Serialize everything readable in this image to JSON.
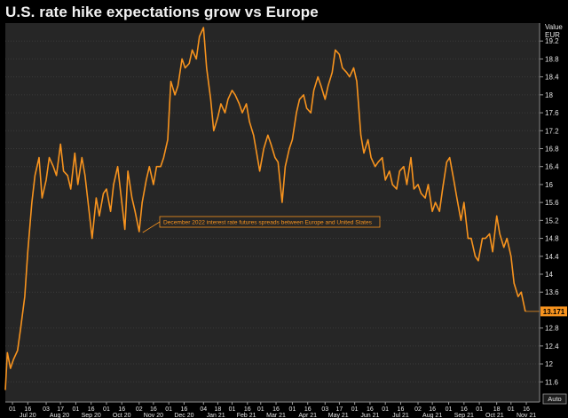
{
  "title": "U.S. rate hike expectations grow vs Europe",
  "chart_data": {
    "type": "line",
    "title": "U.S. rate hike expectations grow vs Europe",
    "ylabel": "Value",
    "y_unit": "EUR",
    "ylim": [
      11.15,
      19.6
    ],
    "y_ticks": [
      19.2,
      18.8,
      18.4,
      18,
      17.6,
      17.2,
      16.8,
      16.4,
      16,
      15.6,
      15.2,
      14.8,
      14.4,
      14,
      13.6,
      12.8,
      12.4,
      12,
      11.6
    ],
    "y_tick_labels": [
      "19.2",
      "18.8",
      "18.4",
      "18",
      "17.6",
      "17.2",
      "16.8",
      "16.4",
      "16",
      "15.6",
      "15.2",
      "14.8",
      "14.4",
      "14",
      "13.6",
      "12.8",
      "12.4",
      "12",
      "11.6"
    ],
    "last_value": 13.171,
    "last_value_label": "13.171",
    "auto_label": "Auto",
    "x_range": [
      "2020-06-24",
      "2021-11-29"
    ],
    "x_day_ticks": [
      {
        "date": "2020-07-01",
        "label": "01"
      },
      {
        "date": "2020-07-16",
        "label": "16"
      },
      {
        "date": "2020-08-03",
        "label": "03"
      },
      {
        "date": "2020-08-17",
        "label": "17"
      },
      {
        "date": "2020-09-01",
        "label": "01"
      },
      {
        "date": "2020-09-16",
        "label": "16"
      },
      {
        "date": "2020-10-01",
        "label": "01"
      },
      {
        "date": "2020-10-16",
        "label": "16"
      },
      {
        "date": "2020-11-02",
        "label": "02"
      },
      {
        "date": "2020-11-16",
        "label": "16"
      },
      {
        "date": "2020-12-01",
        "label": "01"
      },
      {
        "date": "2020-12-16",
        "label": "16"
      },
      {
        "date": "2021-01-04",
        "label": "04"
      },
      {
        "date": "2021-01-18",
        "label": "18"
      },
      {
        "date": "2021-02-01",
        "label": "01"
      },
      {
        "date": "2021-02-16",
        "label": "16"
      },
      {
        "date": "2021-03-01",
        "label": "01"
      },
      {
        "date": "2021-03-16",
        "label": "16"
      },
      {
        "date": "2021-04-01",
        "label": "01"
      },
      {
        "date": "2021-04-16",
        "label": "16"
      },
      {
        "date": "2021-05-03",
        "label": "03"
      },
      {
        "date": "2021-05-17",
        "label": "17"
      },
      {
        "date": "2021-06-01",
        "label": "01"
      },
      {
        "date": "2021-06-16",
        "label": "16"
      },
      {
        "date": "2021-07-01",
        "label": "01"
      },
      {
        "date": "2021-07-16",
        "label": "16"
      },
      {
        "date": "2021-08-02",
        "label": "02"
      },
      {
        "date": "2021-08-16",
        "label": "16"
      },
      {
        "date": "2021-09-01",
        "label": "01"
      },
      {
        "date": "2021-09-16",
        "label": "16"
      },
      {
        "date": "2021-10-01",
        "label": "01"
      },
      {
        "date": "2021-10-18",
        "label": "18"
      },
      {
        "date": "2021-11-01",
        "label": "01"
      },
      {
        "date": "2021-11-16",
        "label": "16"
      }
    ],
    "x_month_labels": [
      {
        "date": "2020-07-16",
        "label": "Jul 20"
      },
      {
        "date": "2020-08-16",
        "label": "Aug 20"
      },
      {
        "date": "2020-09-16",
        "label": "Sep 20"
      },
      {
        "date": "2020-10-16",
        "label": "Oct 20"
      },
      {
        "date": "2020-11-16",
        "label": "Nov 20"
      },
      {
        "date": "2020-12-16",
        "label": "Dec 20"
      },
      {
        "date": "2021-01-16",
        "label": "Jan 21"
      },
      {
        "date": "2021-02-15",
        "label": "Feb 21"
      },
      {
        "date": "2021-03-16",
        "label": "Mar 21"
      },
      {
        "date": "2021-04-16",
        "label": "Apr 21"
      },
      {
        "date": "2021-05-16",
        "label": "May 21"
      },
      {
        "date": "2021-06-16",
        "label": "Jun 21"
      },
      {
        "date": "2021-07-16",
        "label": "Jul 21"
      },
      {
        "date": "2021-08-16",
        "label": "Aug 21"
      },
      {
        "date": "2021-09-16",
        "label": "Sep 21"
      },
      {
        "date": "2021-10-16",
        "label": "Oct 21"
      },
      {
        "date": "2021-11-16",
        "label": "Nov 21"
      }
    ],
    "annotation": {
      "text": "December 2022 interest rate futures spreads between Europe and United States",
      "anchor": {
        "x": "2020-11-02",
        "y": 14.95
      }
    },
    "series": [
      {
        "color": "#f7931e",
        "points": [
          [
            "2020-06-24",
            11.42
          ],
          [
            "2020-06-26",
            12.25
          ],
          [
            "2020-06-29",
            11.9
          ],
          [
            "2020-07-02",
            12.1
          ],
          [
            "2020-07-06",
            12.3
          ],
          [
            "2020-07-09",
            12.8
          ],
          [
            "2020-07-13",
            13.5
          ],
          [
            "2020-07-16",
            14.5
          ],
          [
            "2020-07-20",
            15.6
          ],
          [
            "2020-07-23",
            16.2
          ],
          [
            "2020-07-27",
            16.6
          ],
          [
            "2020-07-30",
            15.7
          ],
          [
            "2020-08-03",
            16.1
          ],
          [
            "2020-08-06",
            16.6
          ],
          [
            "2020-08-10",
            16.4
          ],
          [
            "2020-08-13",
            16.2
          ],
          [
            "2020-08-17",
            16.9
          ],
          [
            "2020-08-20",
            16.3
          ],
          [
            "2020-08-24",
            16.2
          ],
          [
            "2020-08-27",
            15.9
          ],
          [
            "2020-08-31",
            16.7
          ],
          [
            "2020-09-03",
            16.0
          ],
          [
            "2020-09-07",
            16.6
          ],
          [
            "2020-09-10",
            16.2
          ],
          [
            "2020-09-14",
            15.4
          ],
          [
            "2020-09-17",
            14.8
          ],
          [
            "2020-09-21",
            15.7
          ],
          [
            "2020-09-24",
            15.3
          ],
          [
            "2020-09-28",
            15.8
          ],
          [
            "2020-10-01",
            15.9
          ],
          [
            "2020-10-05",
            15.4
          ],
          [
            "2020-10-08",
            16.0
          ],
          [
            "2020-10-12",
            16.4
          ],
          [
            "2020-10-15",
            15.8
          ],
          [
            "2020-10-19",
            15.0
          ],
          [
            "2020-10-22",
            16.3
          ],
          [
            "2020-10-26",
            15.7
          ],
          [
            "2020-10-29",
            15.4
          ],
          [
            "2020-11-02",
            14.95
          ],
          [
            "2020-11-05",
            15.6
          ],
          [
            "2020-11-09",
            16.1
          ],
          [
            "2020-11-12",
            16.4
          ],
          [
            "2020-11-16",
            16.0
          ],
          [
            "2020-11-19",
            16.4
          ],
          [
            "2020-11-23",
            16.4
          ],
          [
            "2020-11-26",
            16.6
          ],
          [
            "2020-11-30",
            17.0
          ],
          [
            "2020-12-03",
            18.3
          ],
          [
            "2020-12-07",
            18.0
          ],
          [
            "2020-12-10",
            18.2
          ],
          [
            "2020-12-14",
            18.8
          ],
          [
            "2020-12-17",
            18.6
          ],
          [
            "2020-12-21",
            18.7
          ],
          [
            "2020-12-24",
            19.0
          ],
          [
            "2020-12-28",
            18.8
          ],
          [
            "2020-12-31",
            19.3
          ],
          [
            "2021-01-04",
            19.5
          ],
          [
            "2021-01-07",
            18.6
          ],
          [
            "2021-01-11",
            17.9
          ],
          [
            "2021-01-14",
            17.2
          ],
          [
            "2021-01-18",
            17.5
          ],
          [
            "2021-01-21",
            17.8
          ],
          [
            "2021-01-25",
            17.6
          ],
          [
            "2021-01-28",
            17.9
          ],
          [
            "2021-02-01",
            18.1
          ],
          [
            "2021-02-04",
            18.0
          ],
          [
            "2021-02-08",
            17.8
          ],
          [
            "2021-02-11",
            17.6
          ],
          [
            "2021-02-15",
            17.8
          ],
          [
            "2021-02-18",
            17.4
          ],
          [
            "2021-02-22",
            17.1
          ],
          [
            "2021-02-25",
            16.7
          ],
          [
            "2021-02-28",
            16.3
          ],
          [
            "2021-03-04",
            16.8
          ],
          [
            "2021-03-08",
            17.1
          ],
          [
            "2021-03-11",
            16.9
          ],
          [
            "2021-03-15",
            16.6
          ],
          [
            "2021-03-18",
            16.5
          ],
          [
            "2021-03-22",
            15.6
          ],
          [
            "2021-03-25",
            16.4
          ],
          [
            "2021-03-29",
            16.8
          ],
          [
            "2021-04-01",
            17.0
          ],
          [
            "2021-04-05",
            17.6
          ],
          [
            "2021-04-08",
            17.9
          ],
          [
            "2021-04-12",
            18.0
          ],
          [
            "2021-04-15",
            17.7
          ],
          [
            "2021-04-19",
            17.6
          ],
          [
            "2021-04-22",
            18.1
          ],
          [
            "2021-04-26",
            18.4
          ],
          [
            "2021-04-29",
            18.2
          ],
          [
            "2021-05-03",
            17.9
          ],
          [
            "2021-05-06",
            18.2
          ],
          [
            "2021-05-10",
            18.5
          ],
          [
            "2021-05-13",
            19.0
          ],
          [
            "2021-05-17",
            18.9
          ],
          [
            "2021-05-20",
            18.6
          ],
          [
            "2021-05-24",
            18.5
          ],
          [
            "2021-05-27",
            18.4
          ],
          [
            "2021-05-31",
            18.6
          ],
          [
            "2021-06-03",
            18.3
          ],
          [
            "2021-06-07",
            17.1
          ],
          [
            "2021-06-10",
            16.7
          ],
          [
            "2021-06-14",
            17.0
          ],
          [
            "2021-06-17",
            16.6
          ],
          [
            "2021-06-21",
            16.4
          ],
          [
            "2021-06-24",
            16.5
          ],
          [
            "2021-06-28",
            16.6
          ],
          [
            "2021-07-01",
            16.1
          ],
          [
            "2021-07-05",
            16.3
          ],
          [
            "2021-07-08",
            16.0
          ],
          [
            "2021-07-12",
            15.9
          ],
          [
            "2021-07-15",
            16.3
          ],
          [
            "2021-07-19",
            16.4
          ],
          [
            "2021-07-22",
            16.0
          ],
          [
            "2021-07-26",
            16.6
          ],
          [
            "2021-07-29",
            15.9
          ],
          [
            "2021-08-02",
            16.0
          ],
          [
            "2021-08-05",
            15.8
          ],
          [
            "2021-08-09",
            15.7
          ],
          [
            "2021-08-12",
            16.0
          ],
          [
            "2021-08-16",
            15.4
          ],
          [
            "2021-08-19",
            15.6
          ],
          [
            "2021-08-23",
            15.4
          ],
          [
            "2021-08-26",
            15.9
          ],
          [
            "2021-08-30",
            16.5
          ],
          [
            "2021-09-02",
            16.6
          ],
          [
            "2021-09-06",
            16.1
          ],
          [
            "2021-09-09",
            15.7
          ],
          [
            "2021-09-13",
            15.2
          ],
          [
            "2021-09-16",
            15.6
          ],
          [
            "2021-09-20",
            14.8
          ],
          [
            "2021-09-23",
            14.8
          ],
          [
            "2021-09-27",
            14.4
          ],
          [
            "2021-09-30",
            14.3
          ],
          [
            "2021-10-04",
            14.8
          ],
          [
            "2021-10-07",
            14.8
          ],
          [
            "2021-10-11",
            14.9
          ],
          [
            "2021-10-14",
            14.5
          ],
          [
            "2021-10-18",
            15.3
          ],
          [
            "2021-10-21",
            14.9
          ],
          [
            "2021-10-25",
            14.6
          ],
          [
            "2021-10-28",
            14.8
          ],
          [
            "2021-11-01",
            14.4
          ],
          [
            "2021-11-04",
            13.8
          ],
          [
            "2021-11-08",
            13.5
          ],
          [
            "2021-11-11",
            13.6
          ],
          [
            "2021-11-15",
            13.17
          ]
        ]
      }
    ]
  }
}
